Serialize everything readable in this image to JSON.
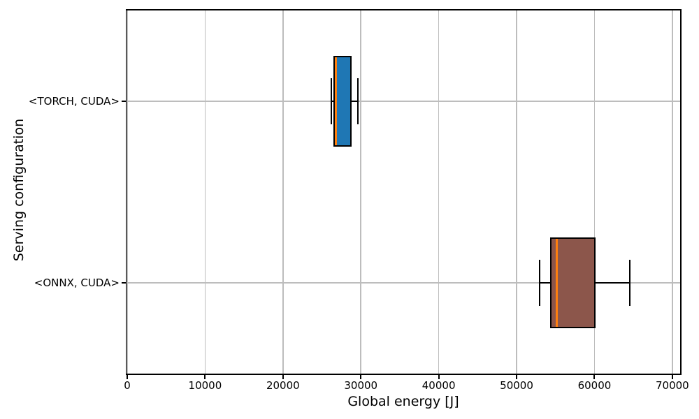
{
  "chart_data": {
    "type": "boxplot",
    "orientation": "horizontal",
    "title": "",
    "xlabel": "Global energy [J]",
    "ylabel": "Serving configuration",
    "categories": [
      "<TORCH, CUDA>",
      "<ONNX, CUDA>"
    ],
    "series": [
      {
        "category": "<TORCH, CUDA>",
        "whisker_low": 26200,
        "q1": 26500,
        "median": 26750,
        "q3": 28800,
        "whisker_high": 29600,
        "box_color": "#1f77b4"
      },
      {
        "category": "<ONNX, CUDA>",
        "whisker_low": 52950,
        "q1": 54300,
        "median": 55150,
        "q3": 60150,
        "whisker_high": 64500,
        "box_color": "#8c564b"
      }
    ],
    "xticks": [
      0,
      10000,
      20000,
      30000,
      40000,
      50000,
      60000,
      70000
    ],
    "xlim": [
      0,
      71000
    ],
    "grid": true,
    "legend_position": "none",
    "colors": {
      "median": "#ff7f0e",
      "box_edge": "#000000",
      "grid": "#bdbdbd",
      "spine": "#000000",
      "text": "#000000"
    }
  }
}
